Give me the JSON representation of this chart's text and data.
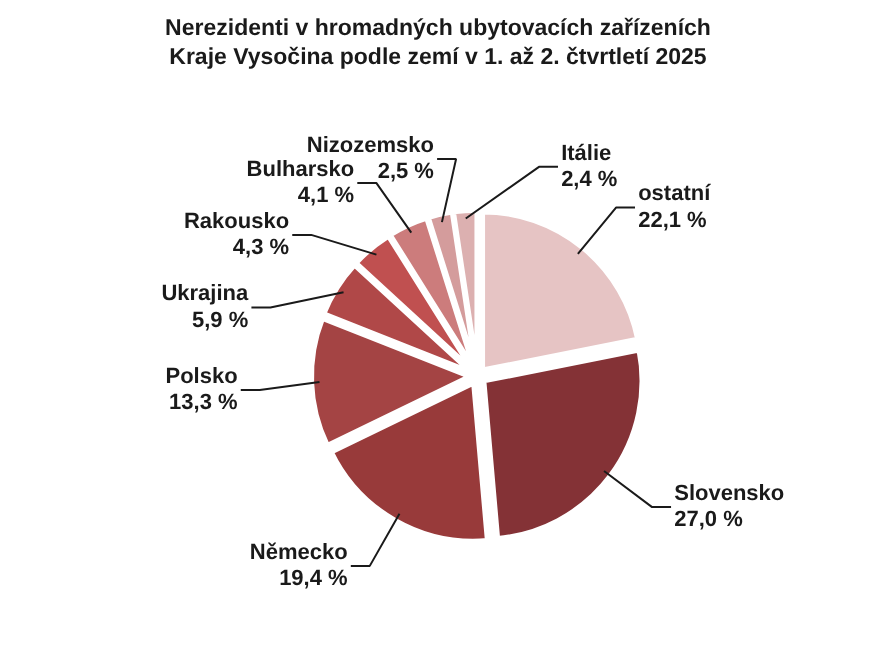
{
  "chart_data": {
    "type": "pie",
    "title": "Nerezidenti v hromadných ubytovacích zařízeních\nKraje Vysočina podle zemí v 1. až 2. čtvrtletí 2025",
    "categories": [
      "ostatní",
      "Slovensko",
      "Německo",
      "Polsko",
      "Ukrajina",
      "Rakousko",
      "Bulharsko",
      "Nizozemsko",
      "Itálie"
    ],
    "values": [
      22.1,
      27.0,
      19.4,
      13.3,
      5.9,
      4.3,
      4.1,
      2.5,
      2.4
    ],
    "value_labels": [
      "22,1 %",
      "27,0 %",
      "19,4 %",
      "13,3 %",
      "5,9 %",
      "4,3 %",
      "4,1 %",
      "2,5 %",
      "2,4 %"
    ],
    "colors": [
      "#e6c4c4",
      "#843236",
      "#983a3a",
      "#a44444",
      "#b04848",
      "#c05050",
      "#cc7c7c",
      "#d49c9c",
      "#dcb0b0"
    ]
  }
}
